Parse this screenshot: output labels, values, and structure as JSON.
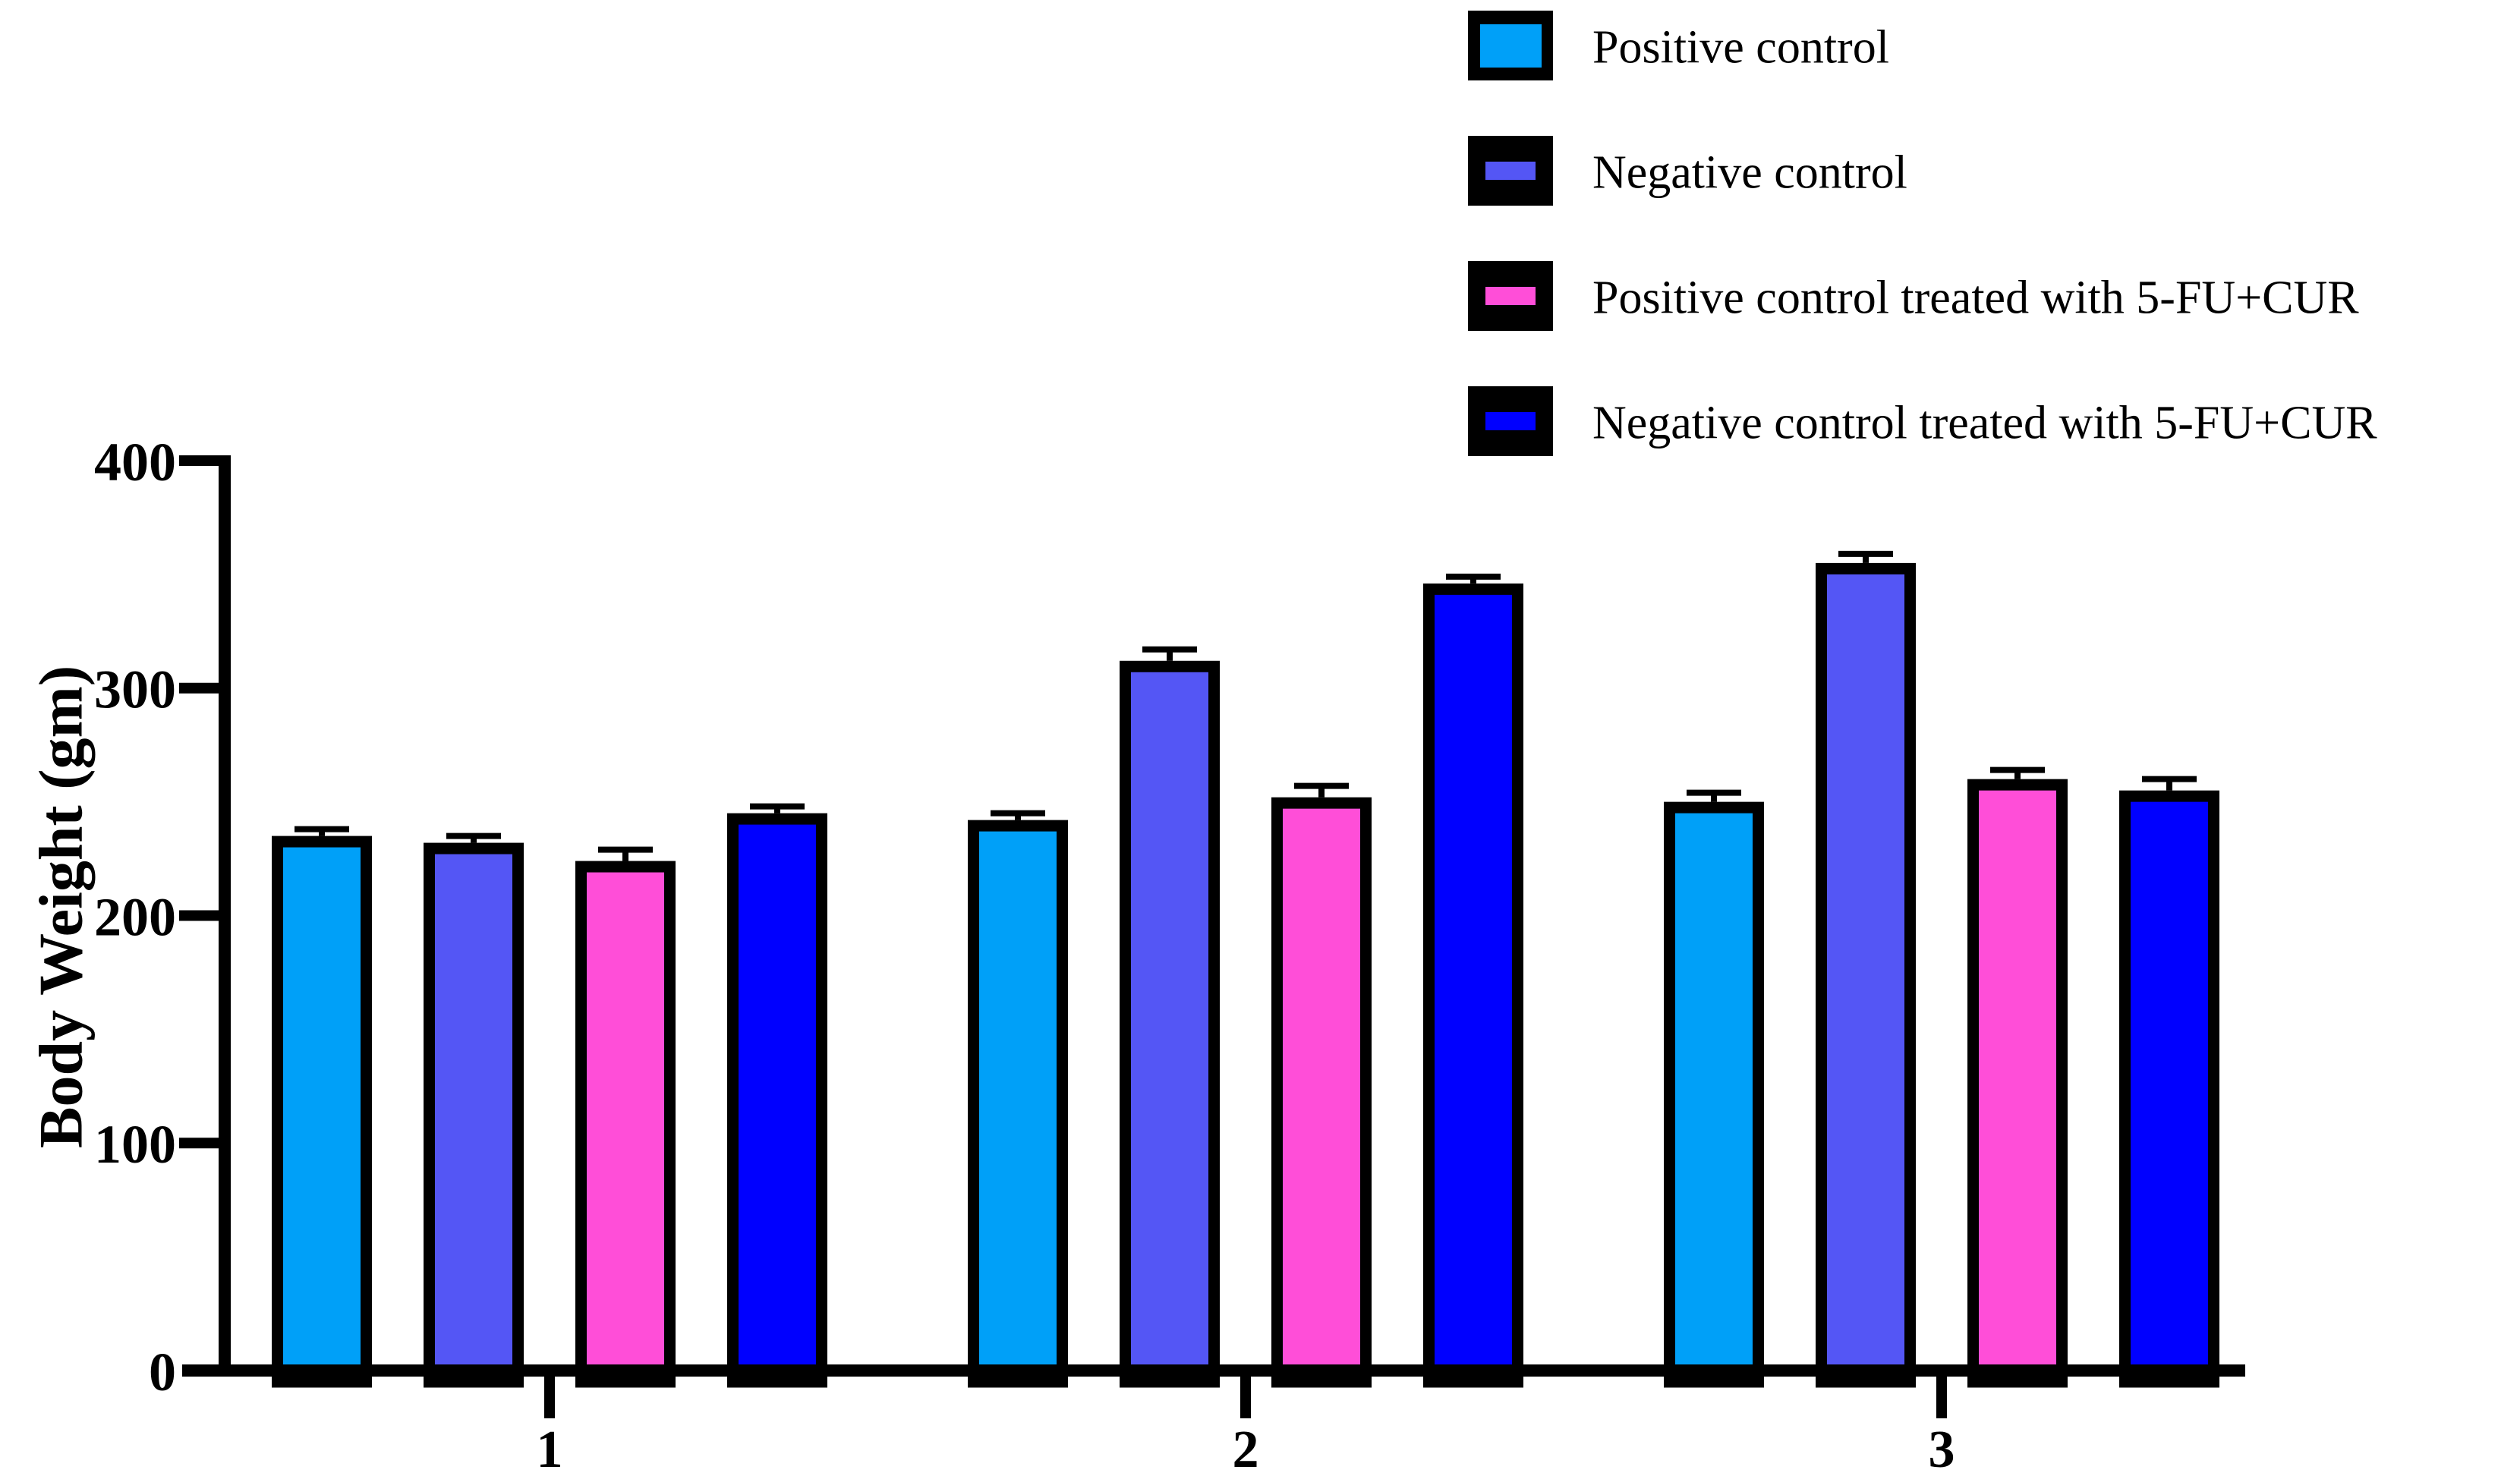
{
  "chart_data": {
    "type": "bar",
    "title": "",
    "xlabel": "",
    "ylabel": "Body Weight (gm)",
    "ylim": [
      0,
      400
    ],
    "yticks": [
      0,
      100,
      200,
      300,
      400
    ],
    "categories": [
      "1",
      "2",
      "3"
    ],
    "grid": false,
    "legend_position": "top-right",
    "bar_border_color": "#000000",
    "axis_color": "#000000",
    "series": [
      {
        "name": "Positive control",
        "color": "#00A0F8",
        "values": [
          235,
          242,
          250
        ],
        "errors": [
          3,
          3,
          4
        ]
      },
      {
        "name": "Negative control",
        "color": "#5456F5",
        "values": [
          232,
          312,
          355
        ],
        "errors": [
          3,
          5,
          4
        ]
      },
      {
        "name": "Positive control treated with 5-FU+CUR",
        "color": "#FF4ED8",
        "values": [
          224,
          252,
          260
        ],
        "errors": [
          5,
          5,
          4
        ]
      },
      {
        "name": "Negative control treated with 5-FU+CUR",
        "color": "#0000FF",
        "values": [
          245,
          346,
          255
        ],
        "errors": [
          3,
          3,
          5
        ]
      }
    ]
  }
}
